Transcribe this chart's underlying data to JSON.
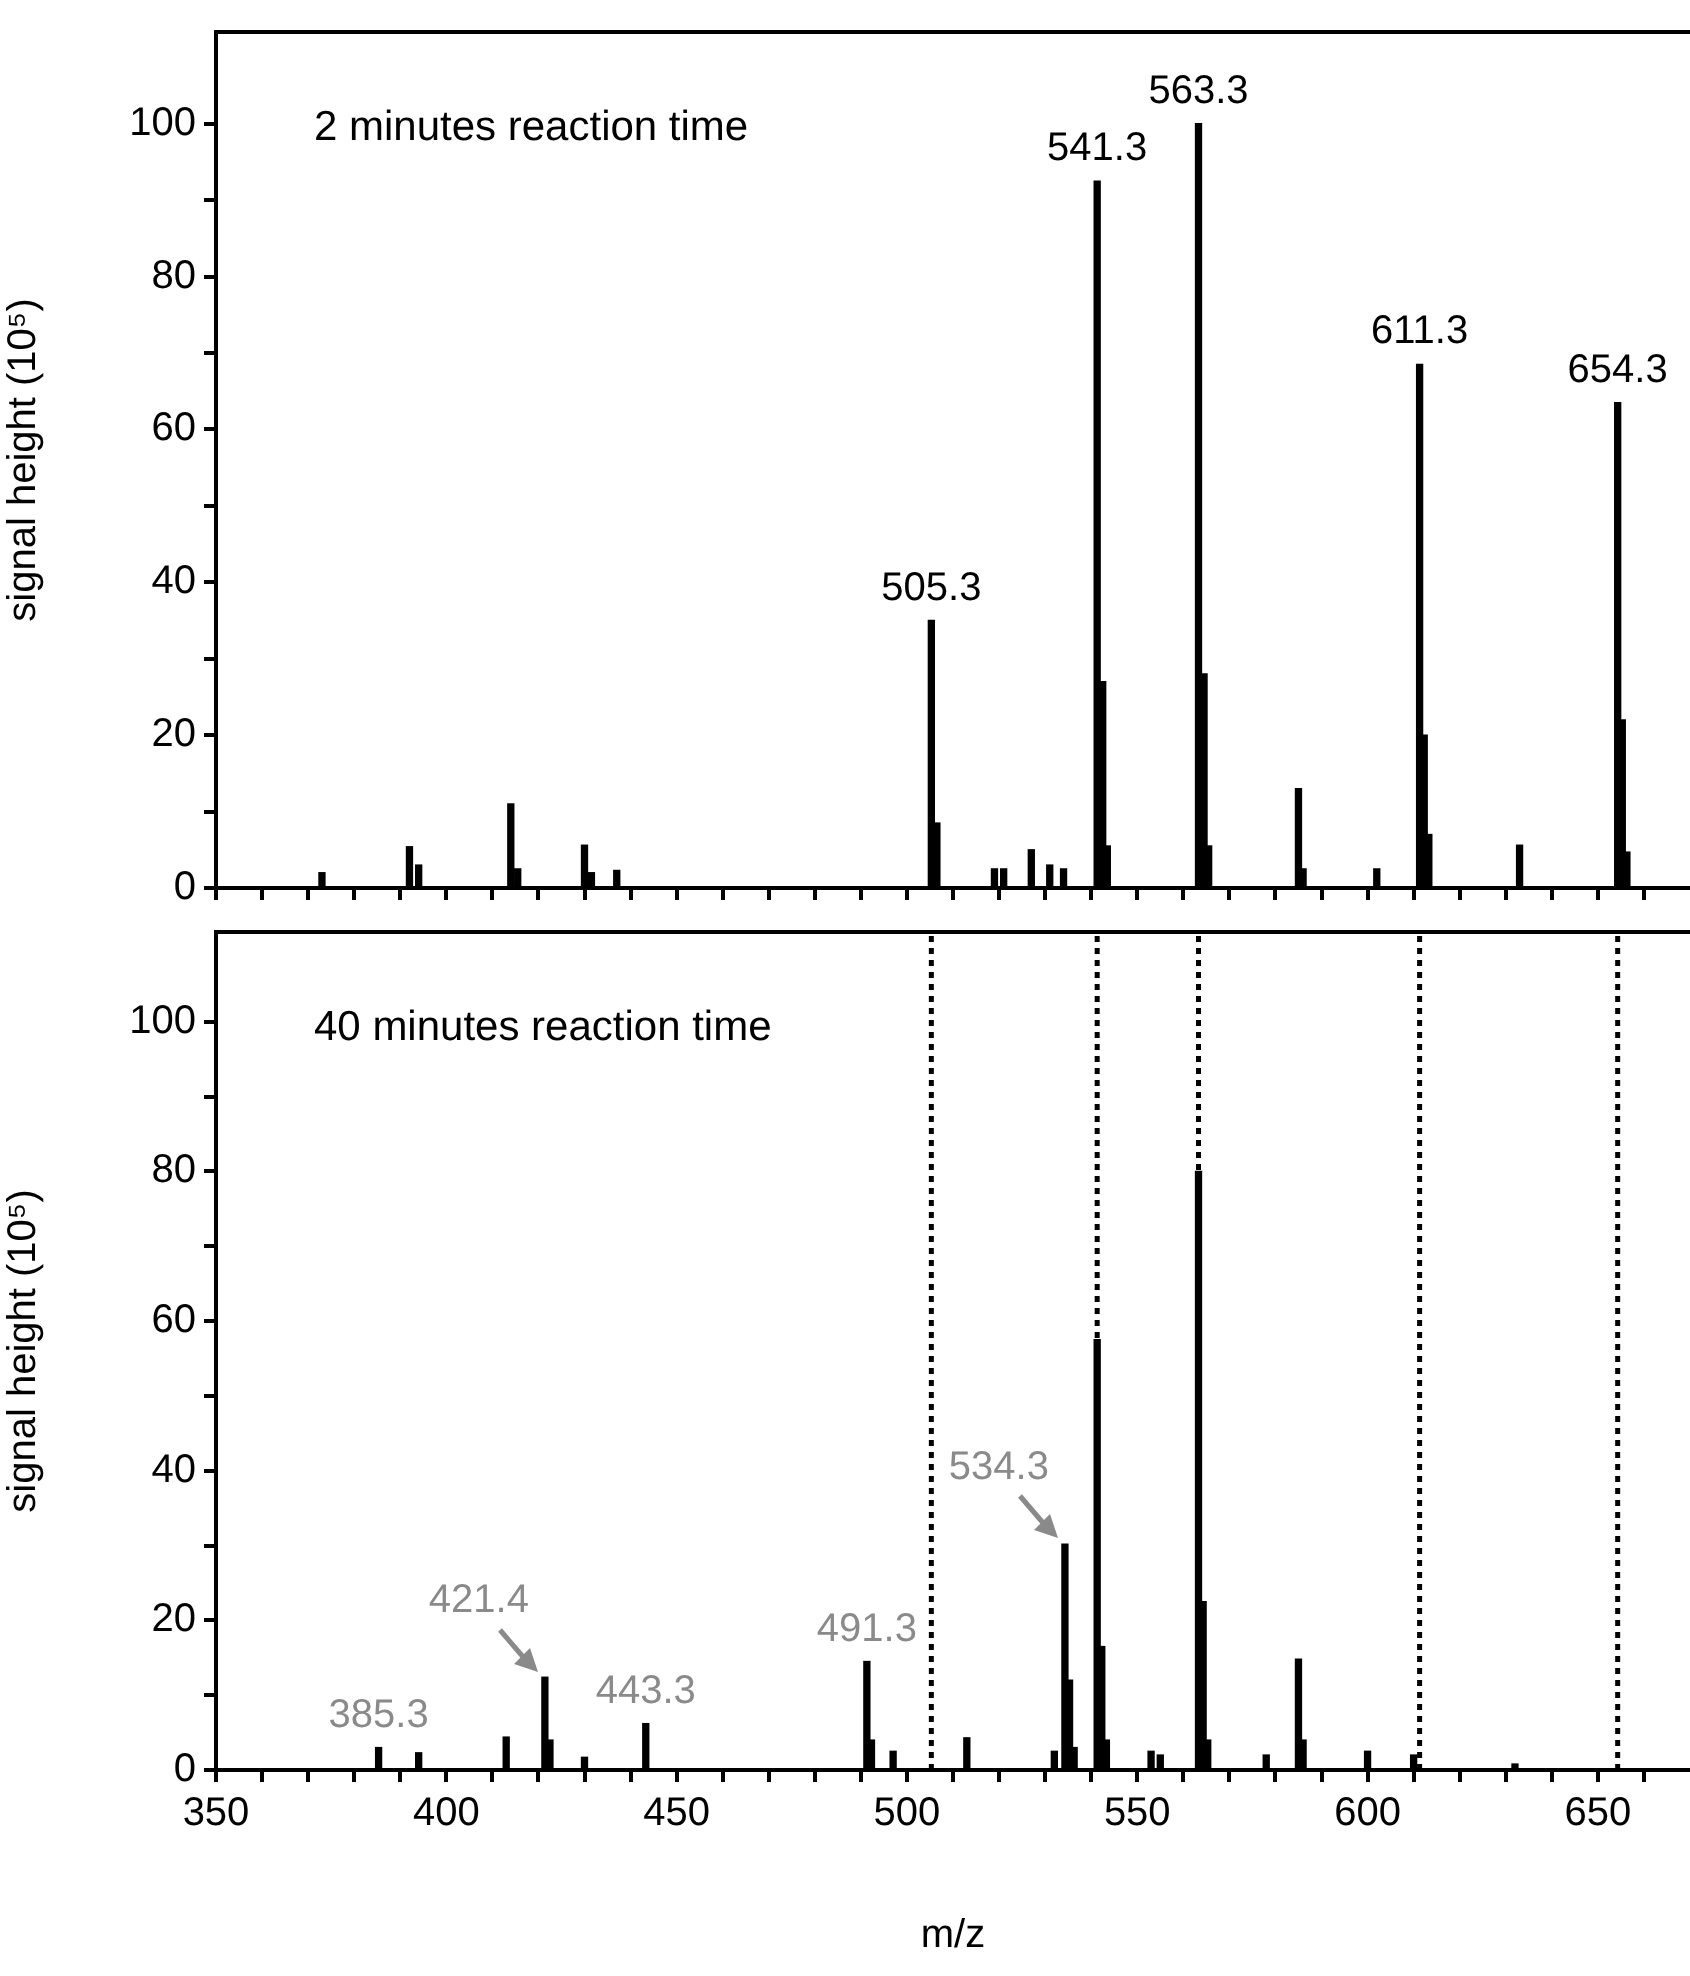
{
  "chart_data": [
    {
      "type": "bar",
      "title": "2 minutes reaction time",
      "ylabel": "signal height (10⁵)",
      "color": "#000000",
      "x": [
        373,
        392,
        394,
        414,
        415.5,
        430,
        431.5,
        437,
        505.3,
        506.5,
        519,
        521,
        527,
        531,
        534,
        541.3,
        542.5,
        543.5,
        563.3,
        564.5,
        565.5,
        585,
        586,
        602,
        611.3,
        612.3,
        613.3,
        633,
        654.3,
        655.3,
        656.3
      ],
      "values": [
        2,
        5.4,
        3,
        11,
        2.5,
        5.6,
        2,
        2.3,
        35,
        8.5,
        2.5,
        2.5,
        5,
        3,
        2.5,
        92.5,
        27,
        5.5,
        100,
        28,
        5.5,
        13,
        2.5,
        2.5,
        68.5,
        20,
        7,
        5.6,
        63.5,
        22,
        4.7
      ],
      "xlim": [
        350,
        670
      ],
      "xticks": [
        350,
        {
          "value": 360,
          "label": null
        },
        {
          "value": 370,
          "label": null
        },
        {
          "value": 380,
          "label": null
        },
        {
          "value": 390,
          "label": null
        },
        400,
        {
          "value": 410,
          "label": null
        },
        {
          "value": 420,
          "label": null
        },
        {
          "value": 430,
          "label": null
        },
        {
          "value": 440,
          "label": null
        },
        450,
        {
          "value": 460,
          "label": null
        },
        {
          "value": 470,
          "label": null
        },
        {
          "value": 480,
          "label": null
        },
        {
          "value": 490,
          "label": null
        },
        500,
        {
          "value": 510,
          "label": null
        },
        {
          "value": 520,
          "label": null
        },
        {
          "value": 530,
          "label": null
        },
        {
          "value": 540,
          "label": null
        },
        550,
        {
          "value": 560,
          "label": null
        },
        {
          "value": 570,
          "label": null
        },
        {
          "value": 580,
          "label": null
        },
        {
          "value": 590,
          "label": null
        },
        600,
        {
          "value": 610,
          "label": null
        },
        {
          "value": 620,
          "label": null
        },
        {
          "value": 630,
          "label": null
        },
        {
          "value": 640,
          "label": null
        },
        650,
        {
          "value": 660,
          "label": null
        }
      ],
      "ylim": [
        0,
        112
      ],
      "yticks": [
        0,
        {
          "value": 10,
          "label": null
        },
        20,
        {
          "value": 30,
          "label": null
        },
        40,
        {
          "value": 50,
          "label": null
        },
        60,
        {
          "value": 70,
          "label": null
        },
        80,
        {
          "value": 90,
          "label": null
        },
        100
      ],
      "tick_labels": "y",
      "annotations": [
        {
          "text": "505.3",
          "x": 505.3,
          "y": 35
        },
        {
          "text": "541.3",
          "x": 541.3,
          "y": 92.5
        },
        {
          "text": "563.3",
          "x": 563.3,
          "y": 100
        },
        {
          "text": "611.3",
          "x": 611.3,
          "y": 68.5
        },
        {
          "text": "654.3",
          "x": 654.3,
          "y": 63.5
        }
      ]
    },
    {
      "type": "bar",
      "title": "40 minutes reaction time",
      "xlabel": "m/z",
      "ylabel": "signal height (10⁵)",
      "color": "#000000",
      "x": [
        385.3,
        394,
        413,
        421.4,
        422.5,
        430,
        443.3,
        491.3,
        492.3,
        497,
        513,
        532,
        534.3,
        535.3,
        536.3,
        541.3,
        542.3,
        543.3,
        553,
        555,
        563.3,
        564.3,
        565.3,
        578,
        585,
        586,
        600,
        610,
        632
      ],
      "values": [
        3,
        2.3,
        4.4,
        12.4,
        4,
        1.7,
        6.2,
        14.5,
        4,
        2.5,
        4.3,
        2.5,
        30.2,
        12,
        3,
        57.5,
        16.5,
        4,
        2.5,
        2,
        80,
        22.5,
        4,
        2,
        14.8,
        4,
        2.5,
        2,
        0.8
      ],
      "xlim": [
        350,
        670
      ],
      "xticks": [
        350,
        {
          "value": 360,
          "label": null
        },
        {
          "value": 370,
          "label": null
        },
        {
          "value": 380,
          "label": null
        },
        {
          "value": 390,
          "label": null
        },
        400,
        {
          "value": 410,
          "label": null
        },
        {
          "value": 420,
          "label": null
        },
        {
          "value": 430,
          "label": null
        },
        {
          "value": 440,
          "label": null
        },
        450,
        {
          "value": 460,
          "label": null
        },
        {
          "value": 470,
          "label": null
        },
        {
          "value": 480,
          "label": null
        },
        {
          "value": 490,
          "label": null
        },
        500,
        {
          "value": 510,
          "label": null
        },
        {
          "value": 520,
          "label": null
        },
        {
          "value": 530,
          "label": null
        },
        {
          "value": 540,
          "label": null
        },
        550,
        {
          "value": 560,
          "label": null
        },
        {
          "value": 570,
          "label": null
        },
        {
          "value": 580,
          "label": null
        },
        {
          "value": 590,
          "label": null
        },
        600,
        {
          "value": 610,
          "label": null
        },
        {
          "value": 620,
          "label": null
        },
        {
          "value": 630,
          "label": null
        },
        {
          "value": 640,
          "label": null
        },
        650,
        {
          "value": 660,
          "label": null
        }
      ],
      "ylim": [
        0,
        112
      ],
      "yticks": [
        0,
        {
          "value": 10,
          "label": null
        },
        20,
        {
          "value": 30,
          "label": null
        },
        40,
        {
          "value": 50,
          "label": null
        },
        60,
        {
          "value": 70,
          "label": null
        },
        80,
        {
          "value": 90,
          "label": null
        },
        100
      ],
      "annotations": [
        {
          "text": "385.3",
          "x": 385.3,
          "y": 3
        },
        {
          "text": "421.4",
          "x": 421.4,
          "y": 12.4
        },
        {
          "text": "443.3",
          "x": 443.3,
          "y": 6.2
        },
        {
          "text": "491.3",
          "x": 491.3,
          "y": 14.5
        },
        {
          "text": "534.3",
          "x": 534.3,
          "y": 30.2
        }
      ],
      "ref_lines": [
        {
          "axis": "x",
          "value": 505.3,
          "line_style": "dotted"
        },
        {
          "axis": "x",
          "value": 541.3,
          "line_style": "dotted"
        },
        {
          "axis": "x",
          "value": 563.3,
          "line_style": "dotted"
        },
        {
          "axis": "x",
          "value": 611.3,
          "line_style": "dotted"
        },
        {
          "axis": "x",
          "value": 654.3,
          "line_style": "dotted"
        }
      ]
    }
  ]
}
